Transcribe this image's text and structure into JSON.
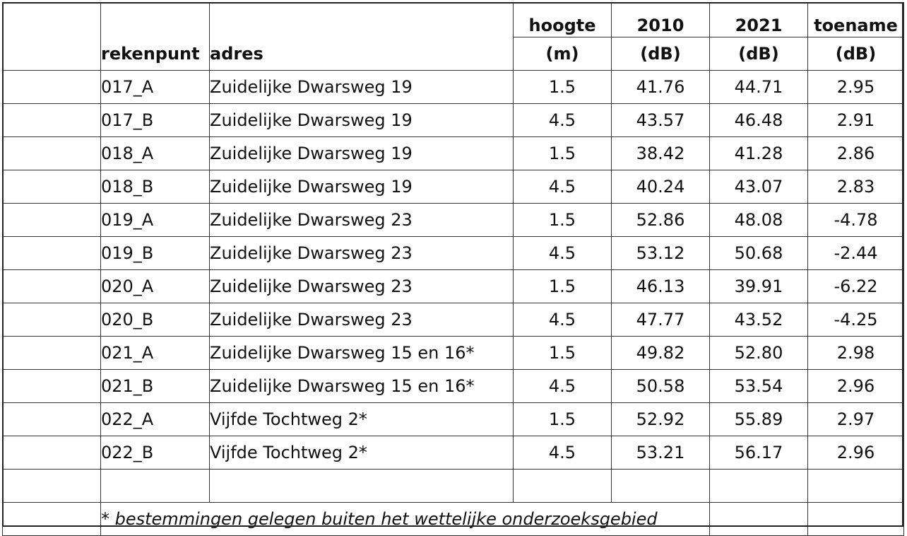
{
  "table": {
    "header": {
      "rekenpunt": "rekenpunt",
      "adres": "adres",
      "hoogte": "hoogte",
      "hoogte_unit": "(m)",
      "y2010": "2010",
      "y2010_unit": "(dB)",
      "y2021": "2021",
      "y2021_unit": "(dB)",
      "toename": "toename",
      "toename_unit": "(dB)"
    },
    "rows": [
      {
        "rekenpunt": "017_A",
        "adres": "Zuidelijke Dwarsweg 19",
        "hoogte": "1.5",
        "v2010": "41.76",
        "v2021": "44.71",
        "toename": "2.95"
      },
      {
        "rekenpunt": "017_B",
        "adres": "Zuidelijke Dwarsweg 19",
        "hoogte": "4.5",
        "v2010": "43.57",
        "v2021": "46.48",
        "toename": "2.91"
      },
      {
        "rekenpunt": "018_A",
        "adres": "Zuidelijke Dwarsweg 19",
        "hoogte": "1.5",
        "v2010": "38.42",
        "v2021": "41.28",
        "toename": "2.86"
      },
      {
        "rekenpunt": "018_B",
        "adres": "Zuidelijke Dwarsweg 19",
        "hoogte": "4.5",
        "v2010": "40.24",
        "v2021": "43.07",
        "toename": "2.83"
      },
      {
        "rekenpunt": "019_A",
        "adres": "Zuidelijke Dwarsweg 23",
        "hoogte": "1.5",
        "v2010": "52.86",
        "v2021": "48.08",
        "toename": "-4.78"
      },
      {
        "rekenpunt": "019_B",
        "adres": "Zuidelijke Dwarsweg 23",
        "hoogte": "4.5",
        "v2010": "53.12",
        "v2021": "50.68",
        "toename": "-2.44"
      },
      {
        "rekenpunt": "020_A",
        "adres": "Zuidelijke Dwarsweg 23",
        "hoogte": "1.5",
        "v2010": "46.13",
        "v2021": "39.91",
        "toename": "-6.22"
      },
      {
        "rekenpunt": "020_B",
        "adres": "Zuidelijke Dwarsweg 23",
        "hoogte": "4.5",
        "v2010": "47.77",
        "v2021": "43.52",
        "toename": "-4.25"
      },
      {
        "rekenpunt": "021_A",
        "adres": "Zuidelijke Dwarsweg 15 en 16*",
        "hoogte": "1.5",
        "v2010": "49.82",
        "v2021": "52.80",
        "toename": "2.98"
      },
      {
        "rekenpunt": "021_B",
        "adres": "Zuidelijke Dwarsweg 15 en 16*",
        "hoogte": "4.5",
        "v2010": "50.58",
        "v2021": "53.54",
        "toename": "2.96"
      },
      {
        "rekenpunt": "022_A",
        "adres": "Vijfde Tochtweg 2*",
        "hoogte": "1.5",
        "v2010": "52.92",
        "v2021": "55.89",
        "toename": "2.97"
      },
      {
        "rekenpunt": "022_B",
        "adres": "Vijfde Tochtweg 2*",
        "hoogte": "4.5",
        "v2010": "53.21",
        "v2021": "56.17",
        "toename": "2.96"
      }
    ],
    "footnote": "* bestemmingen gelegen buiten het wettelijke onderzoeksgebied"
  }
}
